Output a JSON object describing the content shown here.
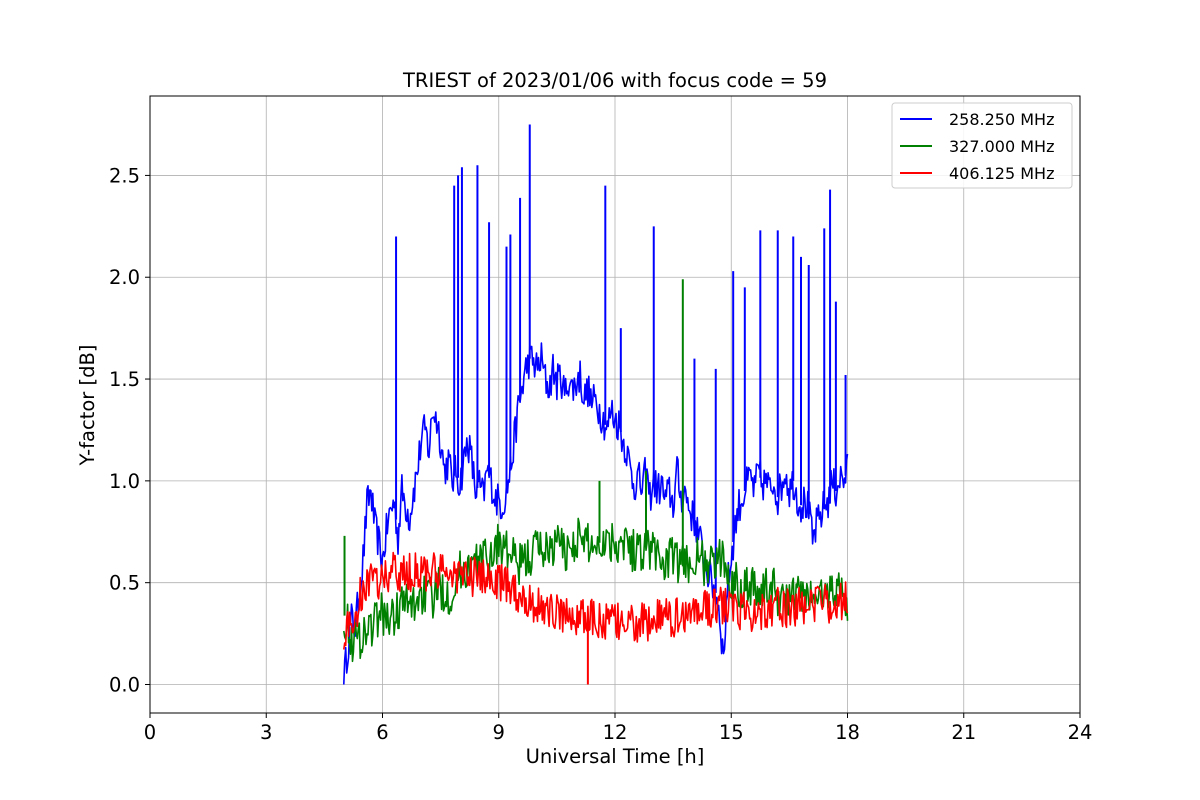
{
  "chart_data": {
    "type": "line",
    "title": "TRIEST of 2023/01/06 with focus code = 59",
    "xlabel": "Universal Time [h]",
    "ylabel": "Y-factor [dB]",
    "xlim": [
      0,
      24
    ],
    "ylim": [
      -0.14,
      2.89
    ],
    "xticks": [
      0,
      3,
      6,
      9,
      12,
      15,
      18,
      21,
      24
    ],
    "xtick_labels": [
      "0",
      "3",
      "6",
      "9",
      "12",
      "15",
      "18",
      "21",
      "24"
    ],
    "yticks": [
      0.0,
      0.5,
      1.0,
      1.5,
      2.0,
      2.5
    ],
    "ytick_labels": [
      "0.0",
      "0.5",
      "1.0",
      "1.5",
      "2.0",
      "2.5"
    ],
    "grid": true,
    "legend_position": "top-right",
    "series": [
      {
        "name": "258.250 MHz",
        "color": "#0000ff",
        "x": [
          5.0,
          5.1,
          5.2,
          5.3,
          5.4,
          5.5,
          5.6,
          5.7,
          5.8,
          5.9,
          6.0,
          6.1,
          6.2,
          6.3,
          6.4,
          6.5,
          6.6,
          6.7,
          6.8,
          6.9,
          7.0,
          7.1,
          7.2,
          7.3,
          7.4,
          7.5,
          7.6,
          7.7,
          7.8,
          7.9,
          8.0,
          8.1,
          8.2,
          8.3,
          8.4,
          8.5,
          8.6,
          8.7,
          8.8,
          8.9,
          9.0,
          9.1,
          9.2,
          9.3,
          9.4,
          9.5,
          9.6,
          9.7,
          9.8,
          9.9,
          10.0,
          10.1,
          10.2,
          10.3,
          10.4,
          10.5,
          10.6,
          10.7,
          10.8,
          10.9,
          11.0,
          11.1,
          11.2,
          11.3,
          11.4,
          11.5,
          11.6,
          11.7,
          11.8,
          11.9,
          12.0,
          12.1,
          12.2,
          12.3,
          12.4,
          12.5,
          12.6,
          12.7,
          12.8,
          12.9,
          13.0,
          13.1,
          13.2,
          13.3,
          13.4,
          13.5,
          13.6,
          13.7,
          13.8,
          13.9,
          14.0,
          14.1,
          14.2,
          14.3,
          14.4,
          14.5,
          14.6,
          14.7,
          14.8,
          14.9,
          15.0,
          15.1,
          15.2,
          15.3,
          15.4,
          15.5,
          15.6,
          15.7,
          15.8,
          15.9,
          16.0,
          16.1,
          16.2,
          16.3,
          16.4,
          16.5,
          16.6,
          16.7,
          16.8,
          16.9,
          17.0,
          17.1,
          17.2,
          17.3,
          17.4,
          17.5,
          17.6,
          17.7,
          17.8,
          17.9,
          18.0
        ],
        "values": [
          0.02,
          0.18,
          0.32,
          0.28,
          0.45,
          0.62,
          0.88,
          0.95,
          0.78,
          0.7,
          0.6,
          0.75,
          0.85,
          0.9,
          0.72,
          0.95,
          0.88,
          0.82,
          0.95,
          1.05,
          1.2,
          1.25,
          1.15,
          1.35,
          1.3,
          1.2,
          1.05,
          1.1,
          1.0,
          1.05,
          0.98,
          1.1,
          1.2,
          1.1,
          0.95,
          0.98,
          0.92,
          1.05,
          1.0,
          0.92,
          0.9,
          0.88,
          0.95,
          1.05,
          1.2,
          1.35,
          1.45,
          1.55,
          1.6,
          1.58,
          1.55,
          1.6,
          1.5,
          1.45,
          1.55,
          1.48,
          1.52,
          1.42,
          1.5,
          1.45,
          1.48,
          1.52,
          1.4,
          1.45,
          1.38,
          1.4,
          1.35,
          1.3,
          1.25,
          1.35,
          1.3,
          1.28,
          1.2,
          1.15,
          1.05,
          0.98,
          1.02,
          0.95,
          1.05,
          0.92,
          1.0,
          0.95,
          0.98,
          0.9,
          0.95,
          0.88,
          1.05,
          0.92,
          0.95,
          0.88,
          0.82,
          0.78,
          0.7,
          0.62,
          0.55,
          0.5,
          0.45,
          0.35,
          0.12,
          0.48,
          0.62,
          0.78,
          0.88,
          0.92,
          0.98,
          1.02,
          0.95,
          1.05,
          0.98,
          1.0,
          0.95,
          1.0,
          0.92,
          0.98,
          1.05,
          0.95,
          1.0,
          0.92,
          0.88,
          0.9,
          0.85,
          0.7,
          0.78,
          0.82,
          0.88,
          0.9,
          1.0,
          0.95,
          1.02,
          1.0,
          1.05
        ],
        "spikes": [
          [
            6.35,
            2.2
          ],
          [
            7.85,
            2.45
          ],
          [
            7.95,
            2.5
          ],
          [
            8.05,
            2.54
          ],
          [
            8.45,
            2.55
          ],
          [
            8.75,
            2.27
          ],
          [
            9.2,
            2.15
          ],
          [
            9.3,
            2.21
          ],
          [
            9.55,
            2.39
          ],
          [
            9.8,
            2.75
          ],
          [
            11.75,
            2.45
          ],
          [
            12.15,
            1.75
          ],
          [
            13.0,
            2.25
          ],
          [
            14.05,
            1.6
          ],
          [
            14.6,
            1.55
          ],
          [
            15.05,
            2.03
          ],
          [
            15.35,
            1.95
          ],
          [
            15.75,
            2.23
          ],
          [
            16.2,
            2.23
          ],
          [
            16.6,
            2.2
          ],
          [
            16.8,
            2.1
          ],
          [
            17.0,
            2.06
          ],
          [
            17.4,
            2.24
          ],
          [
            17.55,
            2.43
          ],
          [
            17.7,
            1.88
          ],
          [
            17.95,
            1.52
          ]
        ]
      },
      {
        "name": "327.000 MHz",
        "color": "#008000",
        "x": [
          5.0,
          5.25,
          5.5,
          5.75,
          6.0,
          6.25,
          6.5,
          6.75,
          7.0,
          7.25,
          7.5,
          7.75,
          8.0,
          8.25,
          8.5,
          8.75,
          9.0,
          9.25,
          9.5,
          9.75,
          10.0,
          10.25,
          10.5,
          10.75,
          11.0,
          11.25,
          11.5,
          11.75,
          12.0,
          12.25,
          12.5,
          12.75,
          13.0,
          13.25,
          13.5,
          13.75,
          14.0,
          14.25,
          14.5,
          14.75,
          15.0,
          15.25,
          15.5,
          15.75,
          16.0,
          16.25,
          16.5,
          16.75,
          17.0,
          17.25,
          17.5,
          17.75,
          18.0
        ],
        "values": [
          0.35,
          0.2,
          0.25,
          0.3,
          0.35,
          0.32,
          0.4,
          0.38,
          0.45,
          0.42,
          0.48,
          0.44,
          0.55,
          0.58,
          0.6,
          0.62,
          0.7,
          0.65,
          0.58,
          0.62,
          0.68,
          0.66,
          0.7,
          0.65,
          0.72,
          0.7,
          0.68,
          0.72,
          0.7,
          0.72,
          0.65,
          0.68,
          0.66,
          0.6,
          0.62,
          0.58,
          0.62,
          0.6,
          0.58,
          0.62,
          0.52,
          0.48,
          0.5,
          0.45,
          0.48,
          0.44,
          0.42,
          0.45,
          0.42,
          0.44,
          0.45,
          0.48,
          0.4
        ],
        "spikes": [
          [
            5.02,
            0.73
          ],
          [
            13.75,
            1.99
          ],
          [
            11.6,
            1.0
          ],
          [
            12.8,
            1.05
          ]
        ]
      },
      {
        "name": "406.125 MHz",
        "color": "#ff0000",
        "x": [
          5.0,
          5.25,
          5.5,
          5.75,
          6.0,
          6.25,
          6.5,
          6.75,
          7.0,
          7.25,
          7.5,
          7.75,
          8.0,
          8.25,
          8.5,
          8.75,
          9.0,
          9.25,
          9.5,
          9.75,
          10.0,
          10.25,
          10.5,
          10.75,
          11.0,
          11.25,
          11.5,
          11.75,
          12.0,
          12.25,
          12.5,
          12.75,
          13.0,
          13.25,
          13.5,
          13.75,
          14.0,
          14.25,
          14.5,
          14.75,
          15.0,
          15.25,
          15.5,
          15.75,
          16.0,
          16.25,
          16.5,
          16.75,
          17.0,
          17.25,
          17.5,
          17.75,
          18.0
        ],
        "values": [
          0.25,
          0.3,
          0.48,
          0.5,
          0.52,
          0.55,
          0.54,
          0.55,
          0.56,
          0.55,
          0.54,
          0.55,
          0.54,
          0.53,
          0.52,
          0.52,
          0.5,
          0.48,
          0.45,
          0.42,
          0.38,
          0.37,
          0.35,
          0.34,
          0.34,
          0.32,
          0.32,
          0.31,
          0.3,
          0.3,
          0.3,
          0.3,
          0.32,
          0.32,
          0.33,
          0.34,
          0.36,
          0.37,
          0.38,
          0.38,
          0.38,
          0.36,
          0.36,
          0.37,
          0.38,
          0.38,
          0.37,
          0.38,
          0.38,
          0.4,
          0.4,
          0.42,
          0.4
        ],
        "spikes": [
          [
            11.3,
            0.0
          ]
        ]
      }
    ]
  }
}
